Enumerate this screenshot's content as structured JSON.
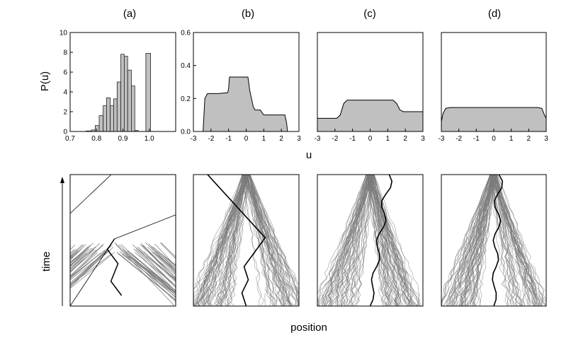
{
  "panel_labels": [
    "(a)",
    "(b)",
    "(c)",
    "(d)"
  ],
  "shared_labels": {
    "top_ylabel": "P(u)",
    "top_xlabel": "u",
    "bottom_ylabel": "time",
    "bottom_xlabel": "position"
  },
  "colors": {
    "fill": "#c0c0c0",
    "trajectory": "#7a7a7a",
    "highlight": "#000000"
  },
  "chart_data": [
    {
      "panel": "(a)",
      "type": "bar",
      "xlim": [
        0.7,
        1.1
      ],
      "ylim": [
        0,
        10
      ],
      "xticks": [
        "0.7",
        "0.8",
        "0.9",
        "1.0"
      ],
      "yticks": [
        "0",
        "2",
        "4",
        "6",
        "8",
        "10"
      ],
      "bins": [
        {
          "x0": 0.76,
          "x1": 0.78,
          "y": 0.05
        },
        {
          "x0": 0.78,
          "x1": 0.795,
          "y": 0.15
        },
        {
          "x0": 0.795,
          "x1": 0.81,
          "y": 0.6
        },
        {
          "x0": 0.81,
          "x1": 0.825,
          "y": 1.6
        },
        {
          "x0": 0.825,
          "x1": 0.838,
          "y": 2.6
        },
        {
          "x0": 0.838,
          "x1": 0.852,
          "y": 3.4
        },
        {
          "x0": 0.852,
          "x1": 0.865,
          "y": 2.6
        },
        {
          "x0": 0.865,
          "x1": 0.878,
          "y": 3.3
        },
        {
          "x0": 0.878,
          "x1": 0.892,
          "y": 5.0
        },
        {
          "x0": 0.892,
          "x1": 0.905,
          "y": 7.8
        },
        {
          "x0": 0.905,
          "x1": 0.918,
          "y": 7.6
        },
        {
          "x0": 0.918,
          "x1": 0.932,
          "y": 6.2
        },
        {
          "x0": 0.932,
          "x1": 0.945,
          "y": 4.6
        },
        {
          "x0": 0.945,
          "x1": 0.958,
          "y": 0.1
        },
        {
          "x0": 0.987,
          "x1": 1.005,
          "y": 7.9
        }
      ]
    },
    {
      "panel": "(b)",
      "type": "area",
      "xlim": [
        -3,
        3
      ],
      "ylim": [
        0,
        0.6
      ],
      "xticks": [
        "-3",
        "-2",
        "-1",
        "0",
        "1",
        "2",
        "3"
      ],
      "yticks": [
        "0.0",
        "0.2",
        "0.4",
        "0.6"
      ],
      "x": [
        -2.45,
        -2.35,
        -2.2,
        -1.6,
        -1.05,
        -1.0,
        -0.95,
        -0.5,
        0.0,
        0.1,
        0.2,
        0.4,
        0.5,
        0.8,
        1.0,
        1.5,
        2.0,
        2.2,
        2.3,
        2.35
      ],
      "y": [
        0.0,
        0.2,
        0.23,
        0.23,
        0.235,
        0.26,
        0.33,
        0.33,
        0.33,
        0.33,
        0.25,
        0.15,
        0.13,
        0.13,
        0.1,
        0.1,
        0.1,
        0.1,
        0.05,
        0.0
      ]
    },
    {
      "panel": "(c)",
      "type": "area",
      "xlim": [
        -3,
        3
      ],
      "ylim": [
        0,
        0.6
      ],
      "xticks": [
        "-3",
        "-2",
        "-1",
        "0",
        "1",
        "2",
        "3"
      ],
      "yticks": [],
      "x": [
        -3.0,
        -1.9,
        -1.7,
        -1.5,
        -1.3,
        1.3,
        1.5,
        1.7,
        1.9,
        3.0
      ],
      "y": [
        0.08,
        0.08,
        0.1,
        0.17,
        0.19,
        0.19,
        0.17,
        0.13,
        0.12,
        0.12
      ]
    },
    {
      "panel": "(d)",
      "type": "area",
      "xlim": [
        -3,
        3
      ],
      "ylim": [
        0,
        0.6
      ],
      "xticks": [
        "-3",
        "-2",
        "-1",
        "0",
        "1",
        "2",
        "3"
      ],
      "yticks": [],
      "x": [
        -3.0,
        -2.9,
        -2.75,
        -2.5,
        2.5,
        2.75,
        2.9,
        3.0
      ],
      "y": [
        0.06,
        0.11,
        0.14,
        0.145,
        0.145,
        0.14,
        0.1,
        0.08
      ]
    }
  ]
}
